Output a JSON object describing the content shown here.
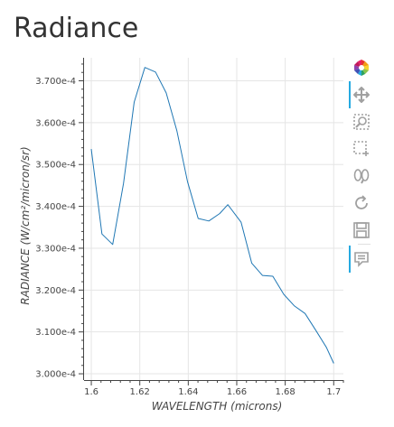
{
  "title": "Radiance",
  "toolbar": {
    "tools": [
      "bokeh-logo",
      "pan",
      "box-zoom",
      "box-select",
      "wheel-zoom",
      "reset",
      "save",
      "hover"
    ],
    "active_color": "#26aae1"
  },
  "colors": {
    "line": "#1f77b4",
    "grid": "#e5e5e5",
    "axis": "#444444",
    "tick_text": "#444444"
  },
  "chart_data": {
    "type": "line",
    "title": "Radiance",
    "xlabel": "WAVELENGTH (microns)",
    "ylabel": "RADIANCE (W/cm²/micron/sr)",
    "xlim": [
      1.597,
      1.704
    ],
    "ylim": [
      0.0002985,
      0.0003755
    ],
    "grid": true,
    "x_ticks": [
      1.6,
      1.62,
      1.64,
      1.66,
      1.68,
      1.7
    ],
    "x_tick_labels": [
      "1.6",
      "1.62",
      "1.64",
      "1.66",
      "1.68",
      "1.7"
    ],
    "y_ticks": [
      0.0003,
      0.00031,
      0.00032,
      0.00033,
      0.00034,
      0.00035,
      0.00036,
      0.00037
    ],
    "y_tick_labels": [
      "3.000e-4",
      "3.100e-4",
      "3.200e-4",
      "3.300e-4",
      "3.400e-4",
      "3.500e-4",
      "3.600e-4",
      "3.700e-4"
    ],
    "series": [
      {
        "x": [
          1.6,
          1.6044,
          1.6088,
          1.6133,
          1.6177,
          1.6221,
          1.6265,
          1.6309,
          1.6353,
          1.6397,
          1.6441,
          1.6485,
          1.653,
          1.6563,
          1.6618,
          1.6662,
          1.6706,
          1.6749,
          1.6794,
          1.6838,
          1.6882,
          1.6926,
          1.697,
          1.7
        ],
        "y": [
          0.0003537,
          0.0003334,
          0.0003309,
          0.0003455,
          0.0003649,
          0.0003732,
          0.0003721,
          0.0003671,
          0.0003581,
          0.0003459,
          0.0003371,
          0.0003365,
          0.0003383,
          0.0003404,
          0.0003362,
          0.0003264,
          0.0003235,
          0.0003233,
          0.000319,
          0.0003162,
          0.0003144,
          0.0003104,
          0.0003063,
          0.0003025
        ]
      }
    ]
  }
}
